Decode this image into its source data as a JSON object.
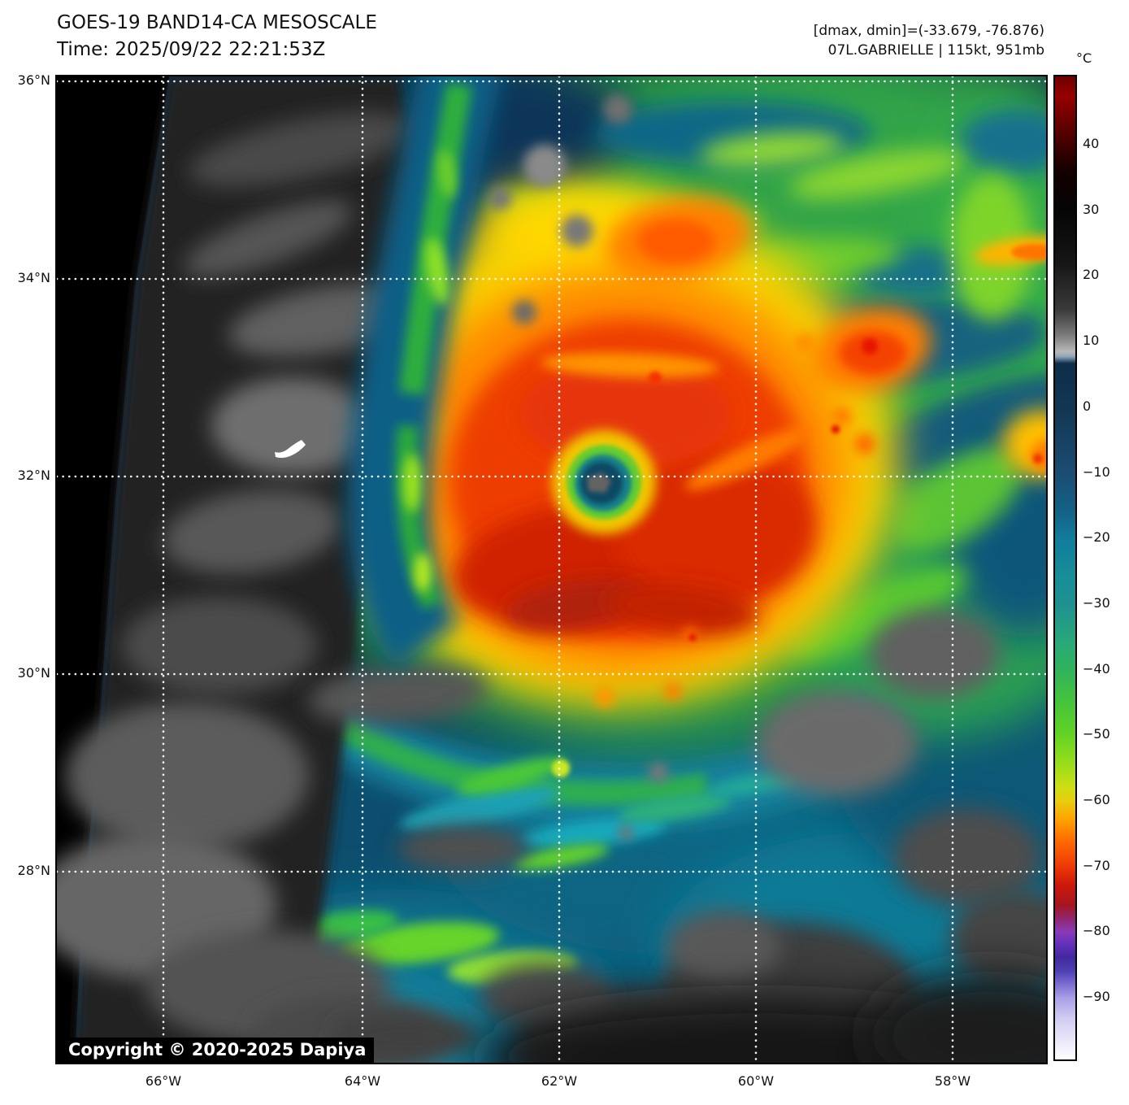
{
  "header": {
    "title": "GOES-19 BAND14-CA MESOSCALE",
    "time_line": "Time: 2025/09/22 22:21:53Z",
    "dmax_dmin": "[dmax, dmin]=(-33.679, -76.876)",
    "storm_line": "07L.GABRIELLE | 115kt, 951mb"
  },
  "colorbar": {
    "unit_label": "°C",
    "ticks": [
      "40",
      "30",
      "20",
      "10",
      "0",
      "−10",
      "−20",
      "−30",
      "−40",
      "−50",
      "−60",
      "−70",
      "−80",
      "−90"
    ],
    "range_top_c": 50,
    "range_bottom_c": -100,
    "colors": {
      "warm_dark_red": "#6e0000",
      "black": "#000000",
      "gray": "#7a7a7a",
      "navy": "#123652",
      "teal": "#1e9090",
      "green": "#46c33c",
      "yellow": "#e6cf10",
      "orange": "#ff6c00",
      "red": "#ef3a06",
      "purple": "#8a3ab8",
      "lavender": "#a89fe6",
      "white": "#ffffff"
    }
  },
  "map": {
    "lat_ticks": [
      "36°N",
      "34°N",
      "32°N",
      "30°N",
      "28°N"
    ],
    "lon_ticks": [
      "66°W",
      "64°W",
      "62°W",
      "60°W",
      "58°W"
    ],
    "copyright": "Copyright © 2020-2025 Dapiya",
    "features": {
      "storm_name": "Hurricane Gabrielle",
      "eye_location": "near 32°N 61.4°W",
      "island": "Bermuda"
    }
  }
}
